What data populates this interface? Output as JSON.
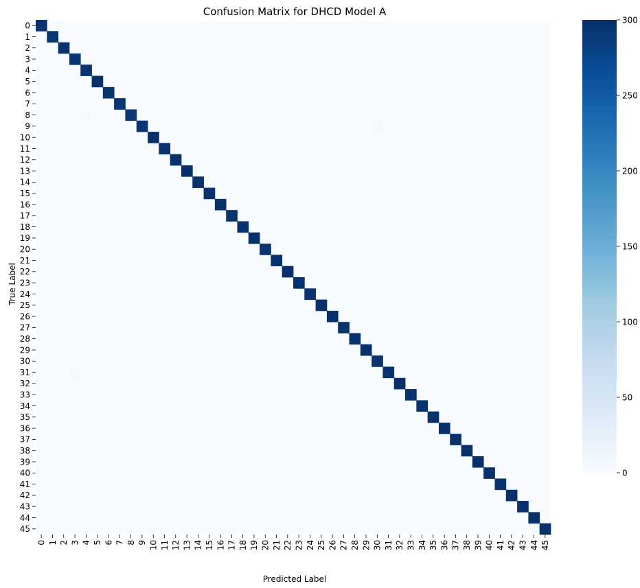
{
  "chart_data": {
    "type": "heatmap",
    "title": "Confusion Matrix for DHCD Model A",
    "xlabel": "Predicted Label",
    "ylabel": "True Label",
    "labels": [
      "0",
      "1",
      "2",
      "3",
      "4",
      "5",
      "6",
      "7",
      "8",
      "9",
      "10",
      "11",
      "12",
      "13",
      "14",
      "15",
      "16",
      "17",
      "18",
      "19",
      "20",
      "21",
      "22",
      "23",
      "24",
      "25",
      "26",
      "27",
      "28",
      "29",
      "30",
      "31",
      "32",
      "33",
      "34",
      "35",
      "36",
      "37",
      "38",
      "39",
      "40",
      "41",
      "42",
      "43",
      "44",
      "45"
    ],
    "diagonal": [
      298,
      293,
      297,
      294,
      295,
      299,
      296,
      294,
      292,
      293,
      299,
      297,
      298,
      299,
      296,
      297,
      299,
      297,
      298,
      299,
      296,
      298,
      299,
      298,
      297,
      299,
      299,
      298,
      297,
      299,
      296,
      297,
      299,
      297,
      297,
      298,
      299,
      299,
      299,
      299,
      299,
      298,
      299,
      299,
      299,
      299
    ],
    "off_diagonal": [
      {
        "true": 1,
        "pred": 18,
        "value": 2
      },
      {
        "true": 4,
        "pred": 8,
        "value": 3
      },
      {
        "true": 6,
        "pred": 20,
        "value": 2
      },
      {
        "true": 7,
        "pred": 30,
        "value": 2
      },
      {
        "true": 8,
        "pred": 4,
        "value": 5
      },
      {
        "true": 8,
        "pred": 3,
        "value": 1
      },
      {
        "true": 9,
        "pred": 7,
        "value": 3
      },
      {
        "true": 9,
        "pred": 30,
        "value": 4
      },
      {
        "true": 14,
        "pred": 20,
        "value": 2
      },
      {
        "true": 17,
        "pred": 7,
        "value": 1
      },
      {
        "true": 19,
        "pred": 11,
        "value": 1
      },
      {
        "true": 20,
        "pred": 2,
        "value": 1
      },
      {
        "true": 20,
        "pred": 6,
        "value": 1
      },
      {
        "true": 20,
        "pred": 11,
        "value": 1
      },
      {
        "true": 20,
        "pred": 14,
        "value": 1
      },
      {
        "true": 21,
        "pred": 24,
        "value": 1
      },
      {
        "true": 23,
        "pred": 12,
        "value": 2
      },
      {
        "true": 25,
        "pred": 2,
        "value": 1
      },
      {
        "true": 26,
        "pred": 7,
        "value": 1
      },
      {
        "true": 27,
        "pred": 6,
        "value": 1
      },
      {
        "true": 27,
        "pred": 14,
        "value": 1
      },
      {
        "true": 28,
        "pred": 11,
        "value": 1
      },
      {
        "true": 28,
        "pred": 22,
        "value": 1
      },
      {
        "true": 28,
        "pred": 34,
        "value": 1
      },
      {
        "true": 30,
        "pred": 17,
        "value": 3
      },
      {
        "true": 31,
        "pred": 3,
        "value": 5
      },
      {
        "true": 32,
        "pred": 12,
        "value": 1
      },
      {
        "true": 32,
        "pred": 17,
        "value": 1
      },
      {
        "true": 33,
        "pred": 8,
        "value": 1
      },
      {
        "true": 33,
        "pred": 30,
        "value": 1
      },
      {
        "true": 33,
        "pred": 42,
        "value": 1
      },
      {
        "true": 34,
        "pred": 11,
        "value": 2
      },
      {
        "true": 34,
        "pred": 14,
        "value": 2
      },
      {
        "true": 35,
        "pred": 15,
        "value": 2
      },
      {
        "true": 41,
        "pred": 18,
        "value": 2
      }
    ],
    "colorbar": {
      "min": 0,
      "max": 300,
      "ticks": [
        0,
        50,
        100,
        150,
        200,
        250,
        300
      ],
      "colormap": "Blues",
      "colors": [
        "#f7fbff",
        "#deebf7",
        "#c6dbef",
        "#9ecae1",
        "#6baed6",
        "#4292c6",
        "#2171b5",
        "#08519c",
        "#08306b"
      ]
    },
    "grid": false
  }
}
